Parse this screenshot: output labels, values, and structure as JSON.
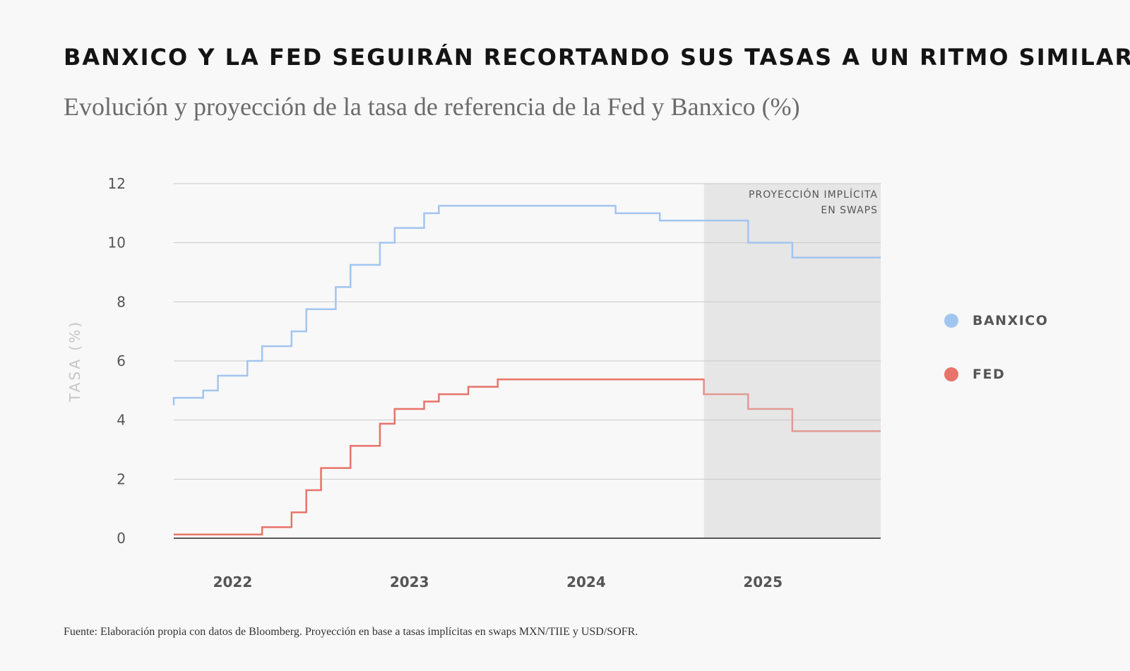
{
  "header": {
    "title": "BANXICO Y LA FED SEGUIRÁN RECORTANDO SUS TASAS A UN RITMO SIMILAR",
    "subtitle": "Evolución y proyección de la tasa de referencia de la Fed y Banxico (%)"
  },
  "footer": {
    "source": "Fuente: Elaboración propia con datos de Bloomberg. Proyección en base a tasas implícitas en swaps MXN/TIIE y USD/SOFR."
  },
  "chart_data": {
    "type": "line",
    "step": true,
    "ylabel": "TASA (%)",
    "ylim": [
      0,
      12
    ],
    "yticks": [
      0,
      2,
      4,
      6,
      8,
      10,
      12
    ],
    "xlim": [
      "2021-09",
      "2025-09"
    ],
    "xticks": [
      {
        "label": "2022",
        "x": "2022-01"
      },
      {
        "label": "2023",
        "x": "2023-01"
      },
      {
        "label": "2024",
        "x": "2024-01"
      },
      {
        "label": "2025",
        "x": "2025-01"
      }
    ],
    "grid": true,
    "legend_position": "right",
    "projection": {
      "label_line1": "PROYECCIÓN IMPLÍCITA",
      "label_line2": "EN SWAPS",
      "start": "2024-09",
      "end": "2025-09",
      "color": "#e6e6e6"
    },
    "series": [
      {
        "name": "BANXICO",
        "color": "#a2c5f0",
        "points": [
          {
            "x": "2021-09",
            "y": 4.5
          },
          {
            "x": "2021-09",
            "y": 4.75
          },
          {
            "x": "2021-11",
            "y": 5.0
          },
          {
            "x": "2021-12",
            "y": 5.5
          },
          {
            "x": "2022-02",
            "y": 6.0
          },
          {
            "x": "2022-03",
            "y": 6.5
          },
          {
            "x": "2022-05",
            "y": 7.0
          },
          {
            "x": "2022-06",
            "y": 7.75
          },
          {
            "x": "2022-08",
            "y": 8.5
          },
          {
            "x": "2022-09",
            "y": 9.25
          },
          {
            "x": "2022-11",
            "y": 10.0
          },
          {
            "x": "2022-12",
            "y": 10.5
          },
          {
            "x": "2023-02",
            "y": 11.0
          },
          {
            "x": "2023-03",
            "y": 11.25
          },
          {
            "x": "2024-03",
            "y": 11.0
          },
          {
            "x": "2024-06",
            "y": 10.75
          },
          {
            "x": "2024-12",
            "y": 10.0
          },
          {
            "x": "2025-03",
            "y": 9.5
          },
          {
            "x": "2025-09",
            "y": 9.5
          }
        ]
      },
      {
        "name": "FED",
        "color": "#e8736a",
        "projection_color": "#e39a94",
        "points": [
          {
            "x": "2021-09",
            "y": 0.125
          },
          {
            "x": "2022-03",
            "y": 0.375
          },
          {
            "x": "2022-05",
            "y": 0.875
          },
          {
            "x": "2022-06",
            "y": 1.625
          },
          {
            "x": "2022-07",
            "y": 2.375
          },
          {
            "x": "2022-09",
            "y": 3.125
          },
          {
            "x": "2022-11",
            "y": 3.875
          },
          {
            "x": "2022-12",
            "y": 4.375
          },
          {
            "x": "2023-02",
            "y": 4.625
          },
          {
            "x": "2023-03",
            "y": 4.875
          },
          {
            "x": "2023-05",
            "y": 5.125
          },
          {
            "x": "2023-07",
            "y": 5.375
          },
          {
            "x": "2024-09",
            "y": 4.875
          },
          {
            "x": "2024-12",
            "y": 4.375
          },
          {
            "x": "2025-03",
            "y": 3.625
          },
          {
            "x": "2025-09",
            "y": 3.625
          }
        ]
      }
    ]
  }
}
